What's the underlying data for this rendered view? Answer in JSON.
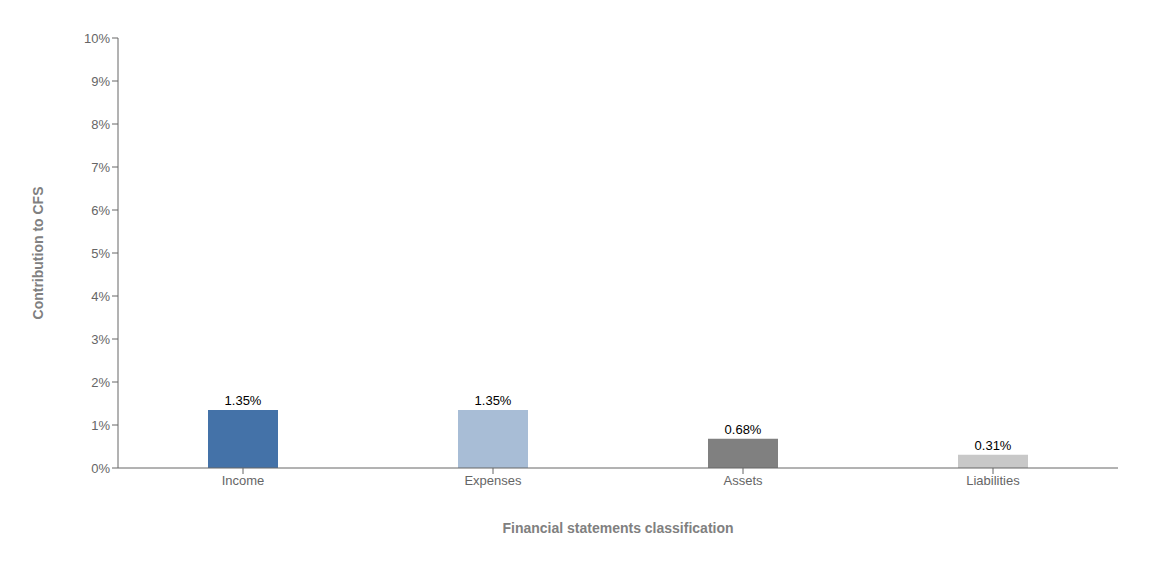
{
  "chart_data": {
    "type": "bar",
    "categories": [
      "Income",
      "Expenses",
      "Assets",
      "Liabilities"
    ],
    "values": [
      0.0135,
      0.0135,
      0.0068,
      0.0031
    ],
    "value_labels": [
      "1.35%",
      "1.35%",
      "0.68%",
      "0.31%"
    ],
    "colors": [
      "#4472A8",
      "#A8BDD6",
      "#808080",
      "#C8C8C8"
    ],
    "xlabel": "Financial statements classification",
    "ylabel": "Contribution to CFS",
    "ylim": [
      0,
      0.1
    ],
    "yticks": [
      {
        "value": 0,
        "label": "0%"
      },
      {
        "value": 0.01,
        "label": "1%"
      },
      {
        "value": 0.02,
        "label": "2%"
      },
      {
        "value": 0.03,
        "label": "3%"
      },
      {
        "value": 0.04,
        "label": "4%"
      },
      {
        "value": 0.05,
        "label": "5%"
      },
      {
        "value": 0.06,
        "label": "6%"
      },
      {
        "value": 0.07,
        "label": "7%"
      },
      {
        "value": 0.08,
        "label": "8%"
      },
      {
        "value": 0.09,
        "label": "9%"
      },
      {
        "value": 0.1,
        "label": "10%"
      }
    ],
    "data_labels": true
  }
}
